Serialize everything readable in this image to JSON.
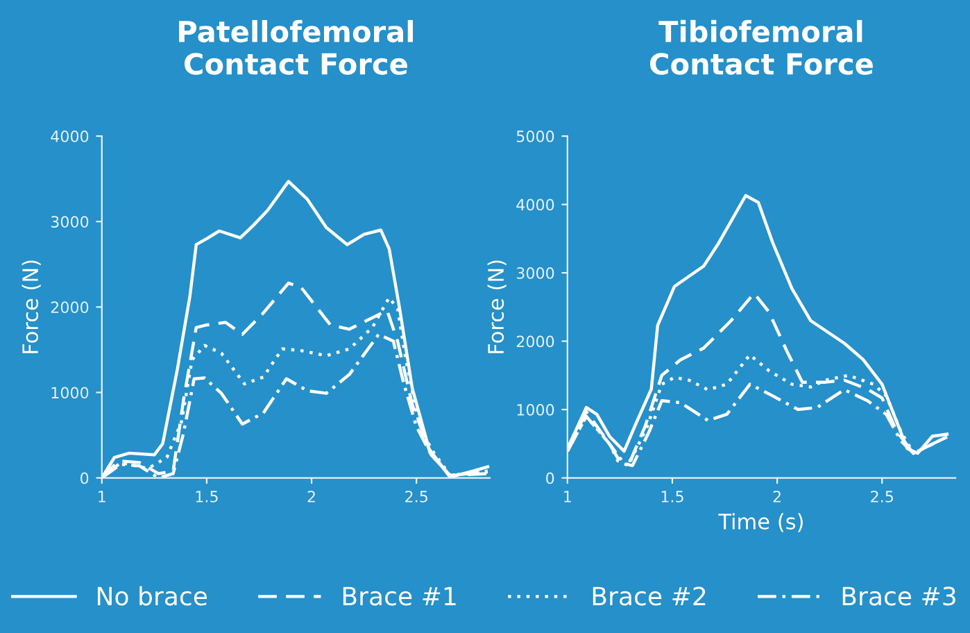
{
  "chart_data": [
    {
      "type": "line",
      "title": "Patellofemoral\nContact Force",
      "ylabel": "Force (N)",
      "xlim": [
        1,
        2.85
      ],
      "ylim": [
        0,
        4000
      ],
      "xticks": [
        1,
        1.5,
        2,
        2.5
      ],
      "yticks": [
        0,
        1000,
        2000,
        3000,
        4000
      ],
      "grid": false,
      "legend": "bottom",
      "marker": "none",
      "series": [
        {
          "name": "No brace",
          "color": "#ffffff",
          "line_style": "solid",
          "x": [
            1.0,
            1.06,
            1.13,
            1.25,
            1.29,
            1.36,
            1.42,
            1.45,
            1.5,
            1.56,
            1.66,
            1.72,
            1.79,
            1.89,
            1.98,
            2.07,
            2.17,
            2.25,
            2.33,
            2.37,
            2.42,
            2.48,
            2.56,
            2.66,
            2.77,
            2.84
          ],
          "values": [
            0,
            240,
            290,
            270,
            400,
            1270,
            2130,
            2730,
            2800,
            2890,
            2810,
            2950,
            3130,
            3470,
            3260,
            2930,
            2730,
            2850,
            2900,
            2680,
            1980,
            1050,
            340,
            10,
            80,
            130
          ]
        },
        {
          "name": "Brace #1",
          "color": "#ffffff",
          "line_style": "dashed",
          "x": [
            1.0,
            1.08,
            1.18,
            1.27,
            1.34,
            1.39,
            1.45,
            1.5,
            1.59,
            1.67,
            1.77,
            1.89,
            1.95,
            2.09,
            2.18,
            2.27,
            2.36,
            2.41,
            2.48,
            2.57,
            2.66,
            2.84
          ],
          "values": [
            0,
            200,
            180,
            50,
            80,
            920,
            1760,
            1790,
            1820,
            1680,
            1930,
            2280,
            2230,
            1790,
            1740,
            1850,
            1960,
            1600,
            860,
            270,
            30,
            50
          ]
        },
        {
          "name": "Brace #2",
          "color": "#ffffff",
          "line_style": "dotted",
          "x": [
            1.0,
            1.09,
            1.22,
            1.31,
            1.38,
            1.43,
            1.49,
            1.57,
            1.68,
            1.77,
            1.86,
            1.95,
            2.07,
            2.18,
            2.29,
            2.37,
            2.41,
            2.45,
            2.51,
            2.57,
            2.66,
            2.84
          ],
          "values": [
            0,
            180,
            110,
            240,
            660,
            1380,
            1550,
            1460,
            1100,
            1180,
            1510,
            1490,
            1430,
            1510,
            1760,
            2110,
            1980,
            1380,
            660,
            340,
            30,
            80
          ]
        },
        {
          "name": "Brace #3",
          "color": "#ffffff",
          "line_style": "dashdot",
          "x": [
            1.0,
            1.09,
            1.18,
            1.27,
            1.34,
            1.39,
            1.44,
            1.49,
            1.57,
            1.67,
            1.77,
            1.88,
            1.98,
            2.07,
            2.18,
            2.32,
            2.39,
            2.44,
            2.5,
            2.57,
            2.66,
            2.84
          ],
          "values": [
            0,
            160,
            140,
            0,
            50,
            530,
            1160,
            1170,
            990,
            630,
            760,
            1160,
            1020,
            990,
            1210,
            1680,
            1600,
            1100,
            600,
            270,
            30,
            70
          ]
        }
      ]
    },
    {
      "type": "line",
      "title": "Tibiofemoral\nContact Force",
      "xlabel": "Time (s)",
      "ylabel": "Force (N)",
      "xlim": [
        1,
        2.85
      ],
      "ylim": [
        0,
        5000
      ],
      "xticks": [
        1,
        1.5,
        2,
        2.5
      ],
      "yticks": [
        0,
        1000,
        2000,
        3000,
        4000,
        5000
      ],
      "grid": false,
      "marker": "none",
      "series": [
        {
          "color": "#ffffff",
          "line_style": "solid",
          "x": [
            1.0,
            1.09,
            1.14,
            1.2,
            1.27,
            1.33,
            1.4,
            1.43,
            1.51,
            1.65,
            1.72,
            1.85,
            1.91,
            1.98,
            2.07,
            2.16,
            2.32,
            2.41,
            2.5,
            2.57,
            2.62,
            2.67,
            2.74,
            2.81
          ],
          "values": [
            430,
            1030,
            930,
            610,
            390,
            820,
            1300,
            2230,
            2800,
            3100,
            3430,
            4130,
            4030,
            3430,
            2770,
            2300,
            1970,
            1730,
            1370,
            820,
            430,
            360,
            610,
            640
          ]
        },
        {
          "color": "#ffffff",
          "line_style": "dashed",
          "x": [
            1.0,
            1.09,
            1.2,
            1.24,
            1.3,
            1.37,
            1.45,
            1.54,
            1.65,
            1.78,
            1.89,
            1.96,
            2.05,
            2.12,
            2.23,
            2.32,
            2.43,
            2.5,
            2.57,
            2.65,
            2.81
          ],
          "values": [
            390,
            970,
            500,
            290,
            250,
            750,
            1500,
            1730,
            1900,
            2300,
            2700,
            2430,
            1830,
            1400,
            1400,
            1430,
            1300,
            1170,
            680,
            360,
            600
          ]
        },
        {
          "color": "#ffffff",
          "line_style": "dotted",
          "x": [
            1.0,
            1.09,
            1.2,
            1.24,
            1.29,
            1.38,
            1.45,
            1.51,
            1.58,
            1.67,
            1.76,
            1.87,
            1.96,
            2.07,
            2.16,
            2.23,
            2.34,
            2.46,
            2.52,
            2.59,
            2.65,
            2.81
          ],
          "values": [
            390,
            900,
            500,
            250,
            180,
            750,
            1370,
            1470,
            1430,
            1290,
            1370,
            1800,
            1570,
            1370,
            1330,
            1430,
            1500,
            1370,
            1200,
            680,
            360,
            600
          ]
        },
        {
          "color": "#ffffff",
          "line_style": "dashdot",
          "x": [
            1.0,
            1.09,
            1.2,
            1.27,
            1.31,
            1.39,
            1.45,
            1.54,
            1.67,
            1.76,
            1.87,
            1.96,
            2.1,
            2.19,
            2.32,
            2.43,
            2.52,
            2.59,
            2.65,
            2.81
          ],
          "values": [
            390,
            900,
            500,
            210,
            180,
            680,
            1130,
            1100,
            840,
            930,
            1370,
            1230,
            1000,
            1030,
            1290,
            1130,
            930,
            540,
            360,
            600
          ]
        }
      ]
    }
  ]
}
